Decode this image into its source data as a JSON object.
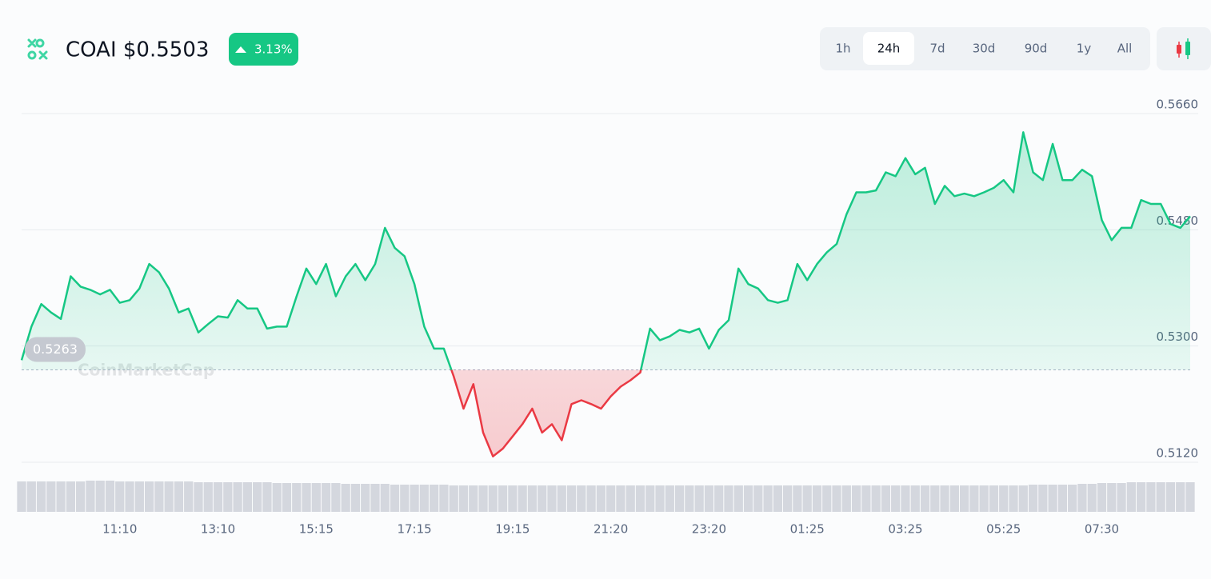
{
  "chart_data": {
    "type": "line",
    "title": "COAI $0.5503",
    "change": "3.13%",
    "timeframes": [
      "1h",
      "24h",
      "7d",
      "30d",
      "90d",
      "1y",
      "All"
    ],
    "selected_timeframe": 1,
    "watermark": "CoinMarketCap",
    "baseline": 0.5263,
    "up_color": "#16c784",
    "down_color": "#ea3943",
    "ylim": [
      0.512,
      0.566
    ],
    "yticks": [
      {
        "value": 0.512,
        "label": "0.5120"
      },
      {
        "value": 0.53,
        "label": "0.5300"
      },
      {
        "value": 0.548,
        "label": "0.5480"
      },
      {
        "value": 0.566,
        "label": "0.5660"
      }
    ],
    "grid": true,
    "categories": [
      null,
      null,
      null,
      null,
      null,
      null,
      null,
      null,
      null,
      null,
      "11:10",
      null,
      null,
      null,
      null,
      null,
      null,
      null,
      null,
      null,
      "13:10",
      null,
      null,
      null,
      null,
      null,
      null,
      null,
      null,
      null,
      "15:15",
      null,
      null,
      null,
      null,
      null,
      null,
      null,
      null,
      null,
      "17:15",
      null,
      null,
      null,
      null,
      null,
      null,
      null,
      null,
      null,
      "19:15",
      null,
      null,
      null,
      null,
      null,
      null,
      null,
      null,
      null,
      "21:20",
      null,
      null,
      null,
      null,
      null,
      null,
      null,
      null,
      null,
      "23:20",
      null,
      null,
      null,
      null,
      null,
      null,
      null,
      null,
      null,
      "01:25",
      null,
      null,
      null,
      null,
      null,
      null,
      null,
      null,
      null,
      "03:25",
      null,
      null,
      null,
      null,
      null,
      null,
      null,
      null,
      null,
      "05:25",
      null,
      null,
      null,
      null,
      null,
      null,
      null,
      null,
      null,
      "07:30",
      null,
      null,
      null,
      null,
      null,
      null,
      null,
      null,
      null
    ],
    "values": [
      0.5278,
      0.533,
      0.5365,
      0.5352,
      0.5342,
      0.5408,
      0.5392,
      0.5387,
      0.538,
      0.5387,
      0.5367,
      0.5371,
      0.5389,
      0.5427,
      0.5414,
      0.5389,
      0.5352,
      0.5358,
      0.5321,
      0.5334,
      0.5346,
      0.5344,
      0.5371,
      0.5358,
      0.5358,
      0.5327,
      0.533,
      0.533,
      0.5377,
      0.542,
      0.5396,
      0.5427,
      0.5377,
      0.5408,
      0.5427,
      0.5402,
      0.5427,
      0.5483,
      0.5452,
      0.5439,
      0.5396,
      0.533,
      0.5296,
      0.5296,
      0.5253,
      0.5203,
      0.5241,
      0.5166,
      0.5129,
      0.5141,
      0.516,
      0.5179,
      0.5203,
      0.5166,
      0.5179,
      0.5154,
      0.521,
      0.5216,
      0.521,
      0.5203,
      0.5222,
      0.5237,
      0.5247,
      0.5259,
      0.5327,
      0.5309,
      0.5315,
      0.5325,
      0.5321,
      0.5327,
      0.5296,
      0.5325,
      0.534,
      0.542,
      0.5396,
      0.5389,
      0.5371,
      0.5367,
      0.5371,
      0.5427,
      0.5402,
      0.5427,
      0.5445,
      0.5458,
      0.5504,
      0.5538,
      0.5538,
      0.5541,
      0.5569,
      0.5563,
      0.5591,
      0.5566,
      0.5576,
      0.552,
      0.5548,
      0.5532,
      0.5536,
      0.5532,
      0.5538,
      0.5545,
      0.5557,
      0.5538,
      0.5631,
      0.5569,
      0.5557,
      0.5613,
      0.5557,
      0.5557,
      0.5573,
      0.5563,
      0.5495,
      0.5464,
      0.5483,
      0.5483,
      0.5526,
      0.552,
      0.552,
      0.5489,
      0.5483,
      0.5501
    ],
    "volume": [
      38,
      38,
      38,
      38,
      38,
      38,
      38,
      39,
      39,
      39,
      38,
      38,
      38,
      38,
      38,
      38,
      38,
      38,
      37,
      37,
      37,
      37,
      37,
      37,
      37,
      37,
      36,
      36,
      36,
      36,
      36,
      36,
      36,
      35,
      35,
      35,
      35,
      35,
      34,
      34,
      34,
      34,
      34,
      34,
      33,
      33,
      33,
      33,
      33,
      33,
      33,
      33,
      33,
      33,
      33,
      33,
      33,
      33,
      33,
      33,
      33,
      33,
      33,
      33,
      33,
      33,
      33,
      33,
      33,
      33,
      33,
      33,
      33,
      33,
      33,
      33,
      33,
      33,
      33,
      33,
      33,
      33,
      33,
      33,
      33,
      33,
      33,
      33,
      33,
      33,
      33,
      33,
      33,
      33,
      33,
      33,
      33,
      33,
      33,
      33,
      33,
      33,
      33,
      34,
      34,
      34,
      34,
      34,
      35,
      35,
      36,
      36,
      36,
      37,
      37,
      37,
      37,
      37,
      37,
      37
    ],
    "volume_color": "#d4d7de"
  }
}
